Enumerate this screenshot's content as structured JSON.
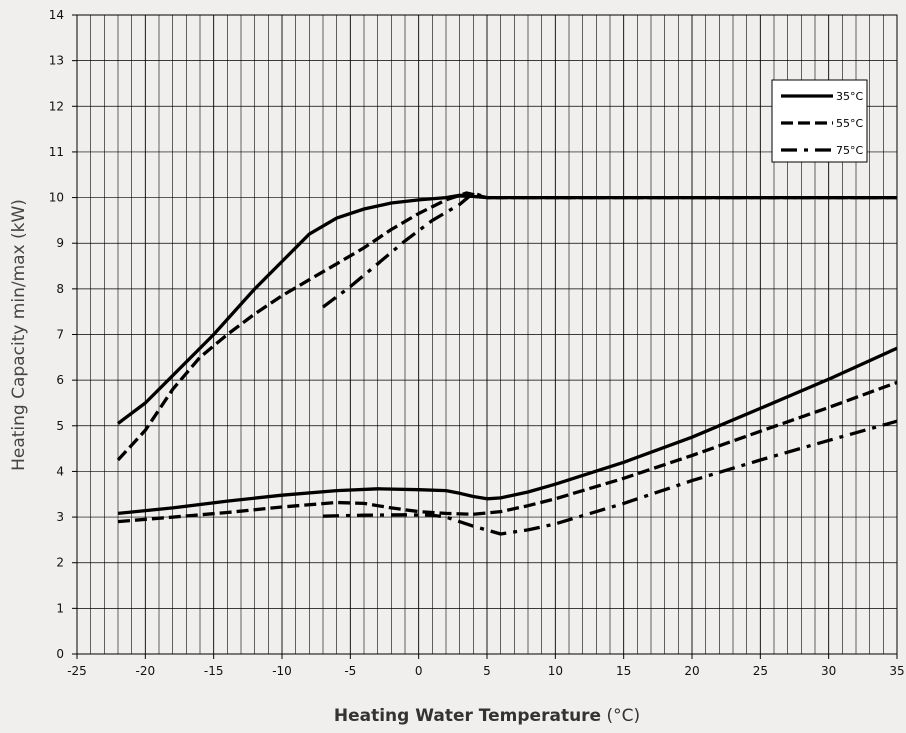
{
  "chart_data": {
    "type": "line",
    "title": "",
    "xlabel": "Heating Water Temperature",
    "xlabel_unit": " (°C)",
    "ylabel": "Heating Capacity min/max (kW)",
    "xlim": [
      -25,
      35
    ],
    "ylim": [
      0,
      14
    ],
    "x_ticks": [
      -25,
      -20,
      -15,
      -10,
      -5,
      0,
      5,
      10,
      15,
      20,
      25,
      30,
      35
    ],
    "y_ticks": [
      0,
      1,
      2,
      3,
      4,
      5,
      6,
      7,
      8,
      9,
      10,
      11,
      12,
      13,
      14
    ],
    "grid": true,
    "legend_position": "top-right",
    "background_color": "#f0efed",
    "line_color": "#000000",
    "series": [
      {
        "name": "35°C",
        "style": "solid",
        "curve": "max",
        "x": [
          -22,
          -20,
          -18,
          -15,
          -12,
          -10,
          -8,
          -6,
          -4,
          -2,
          0,
          2,
          3,
          5,
          10,
          15,
          20,
          25,
          30,
          35
        ],
        "y": [
          5.05,
          5.5,
          6.1,
          7.0,
          8.0,
          8.6,
          9.2,
          9.55,
          9.75,
          9.88,
          9.95,
          10.0,
          10.05,
          10.0,
          10.0,
          10.0,
          10.0,
          10.0,
          10.0,
          10.0
        ]
      },
      {
        "name": "55°C",
        "style": "dashed",
        "curve": "max",
        "x": [
          -22,
          -20,
          -18,
          -16,
          -14,
          -12,
          -10,
          -8,
          -6,
          -4,
          -2,
          0,
          2,
          3.5,
          5,
          10,
          15,
          20,
          25,
          30,
          35
        ],
        "y": [
          4.25,
          4.9,
          5.8,
          6.5,
          7.0,
          7.45,
          7.85,
          8.2,
          8.55,
          8.9,
          9.3,
          9.65,
          9.95,
          10.1,
          10.0,
          10.0,
          10.0,
          10.0,
          10.0,
          10.0,
          10.0
        ]
      },
      {
        "name": "75°C",
        "style": "dash-dot",
        "curve": "max",
        "x": [
          -7,
          -5,
          -3,
          -1,
          1,
          3,
          4,
          5,
          10,
          15,
          20,
          25,
          30,
          35
        ],
        "y": [
          7.6,
          8.05,
          8.55,
          9.05,
          9.5,
          9.85,
          10.1,
          10.0,
          10.0,
          10.0,
          10.0,
          10.0,
          10.0,
          10.0
        ]
      },
      {
        "name": "35°C",
        "style": "solid",
        "curve": "min",
        "x": [
          -22,
          -18,
          -14,
          -10,
          -6,
          -3,
          0,
          2,
          3,
          4,
          5,
          6,
          8,
          10,
          15,
          20,
          25,
          30,
          35
        ],
        "y": [
          3.08,
          3.2,
          3.35,
          3.48,
          3.58,
          3.62,
          3.6,
          3.58,
          3.52,
          3.45,
          3.4,
          3.42,
          3.55,
          3.72,
          4.2,
          4.75,
          5.38,
          6.02,
          6.7
        ]
      },
      {
        "name": "55°C",
        "style": "dashed",
        "curve": "min",
        "x": [
          -22,
          -18,
          -14,
          -10,
          -6,
          -4,
          -2,
          0,
          2,
          4,
          6,
          8,
          10,
          15,
          20,
          25,
          30,
          35
        ],
        "y": [
          2.9,
          3.0,
          3.1,
          3.22,
          3.32,
          3.3,
          3.2,
          3.12,
          3.08,
          3.06,
          3.12,
          3.25,
          3.4,
          3.85,
          4.35,
          4.88,
          5.4,
          5.95
        ]
      },
      {
        "name": "75°C",
        "style": "dash-dot",
        "curve": "min",
        "x": [
          -7,
          -4,
          -1,
          1,
          2,
          4,
          6,
          8,
          10,
          15,
          20,
          25,
          30,
          35
        ],
        "y": [
          3.02,
          3.04,
          3.05,
          3.04,
          3.0,
          2.8,
          2.63,
          2.72,
          2.85,
          3.3,
          3.8,
          4.25,
          4.68,
          5.1
        ]
      }
    ]
  }
}
